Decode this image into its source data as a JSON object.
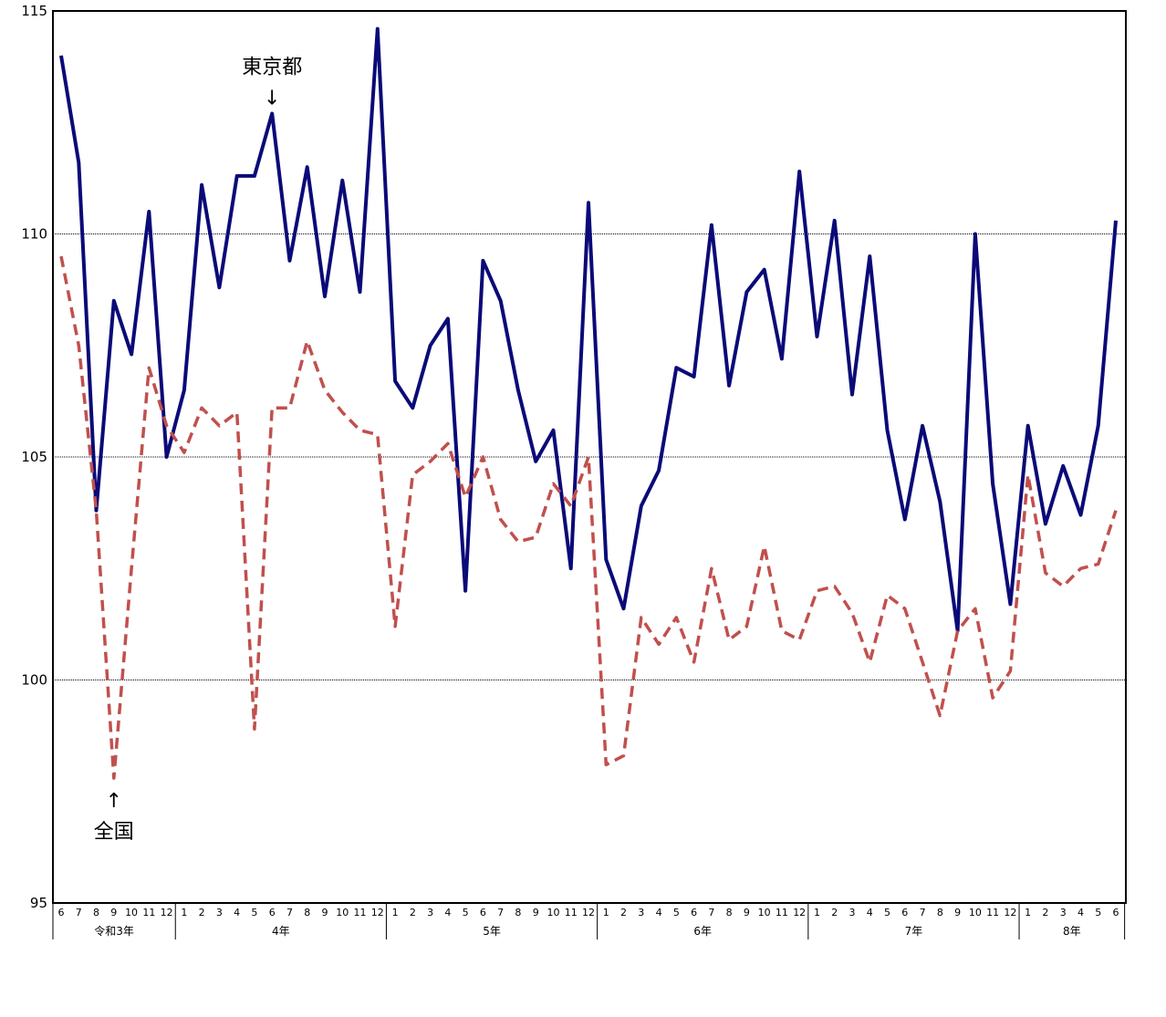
{
  "chart_data": {
    "type": "line",
    "title": "",
    "xlabel": "",
    "ylabel": "",
    "ylim": [
      95,
      115
    ],
    "y_ticks": [
      95,
      100,
      105,
      110,
      115
    ],
    "grid": "horizontal dotted lines at 100, 105, 110",
    "x": [
      "6",
      "7",
      "8",
      "9",
      "10",
      "11",
      "12",
      "1",
      "2",
      "3",
      "4",
      "5",
      "6",
      "7",
      "8",
      "9",
      "10",
      "11",
      "12",
      "1",
      "2",
      "3",
      "4",
      "5",
      "6",
      "7",
      "8",
      "9",
      "10",
      "11",
      "12",
      "1",
      "2",
      "3",
      "4",
      "5",
      "6",
      "7",
      "8",
      "9",
      "10",
      "11",
      "12",
      "1",
      "2",
      "3",
      "4",
      "5",
      "6",
      "7",
      "8",
      "9",
      "10",
      "11",
      "12",
      "1",
      "2",
      "3",
      "4",
      "5",
      "6"
    ],
    "year_groups": [
      {
        "label": "令和3年",
        "count": 7
      },
      {
        "label": "4年",
        "count": 12
      },
      {
        "label": "5年",
        "count": 12
      },
      {
        "label": "6年",
        "count": 12
      },
      {
        "label": "7年",
        "count": 12
      },
      {
        "label": "8年",
        "count": 6
      }
    ],
    "series": [
      {
        "name": "東京都",
        "color": "#0a0a78",
        "style": "solid",
        "values": [
          114.0,
          111.6,
          103.8,
          108.5,
          107.3,
          110.5,
          105.0,
          106.5,
          111.1,
          108.8,
          111.3,
          111.3,
          112.7,
          109.4,
          111.5,
          108.6,
          111.2,
          108.7,
          114.6,
          106.7,
          106.1,
          107.5,
          108.1,
          102.0,
          109.4,
          108.5,
          106.5,
          104.9,
          105.6,
          102.5,
          110.7,
          102.7,
          101.6,
          103.9,
          104.7,
          107.0,
          106.8,
          110.2,
          106.6,
          108.7,
          109.2,
          107.2,
          111.4,
          107.7,
          110.3,
          106.4,
          109.5,
          105.6,
          103.6,
          105.7,
          104.0,
          101.1,
          110.0,
          104.4,
          101.7,
          105.7,
          103.5,
          104.8,
          103.7,
          105.7,
          110.3
        ]
      },
      {
        "name": "全国",
        "color": "#c0504d",
        "style": "dashed",
        "values": [
          109.5,
          107.5,
          103.8,
          97.8,
          102.5,
          107.0,
          105.7,
          105.1,
          106.1,
          105.7,
          106.0,
          98.9,
          106.1,
          106.1,
          107.6,
          106.5,
          106.0,
          105.6,
          105.5,
          101.2,
          104.6,
          104.9,
          105.3,
          104.1,
          105.0,
          103.6,
          103.1,
          103.2,
          104.4,
          103.9,
          105.0,
          98.1,
          98.3,
          101.4,
          100.8,
          101.4,
          100.4,
          102.5,
          100.9,
          101.2,
          103.0,
          101.1,
          100.9,
          102.0,
          102.1,
          101.5,
          100.4,
          101.9,
          101.6,
          100.4,
          99.2,
          101.1,
          101.6,
          99.6,
          100.2,
          104.6,
          102.4,
          102.1,
          102.5,
          102.6,
          103.8
        ]
      }
    ],
    "annotations": [
      {
        "text": "東京都",
        "arrow": "↓",
        "series": "東京都"
      },
      {
        "text": "全国",
        "arrow": "↑",
        "series": "全国"
      }
    ]
  }
}
